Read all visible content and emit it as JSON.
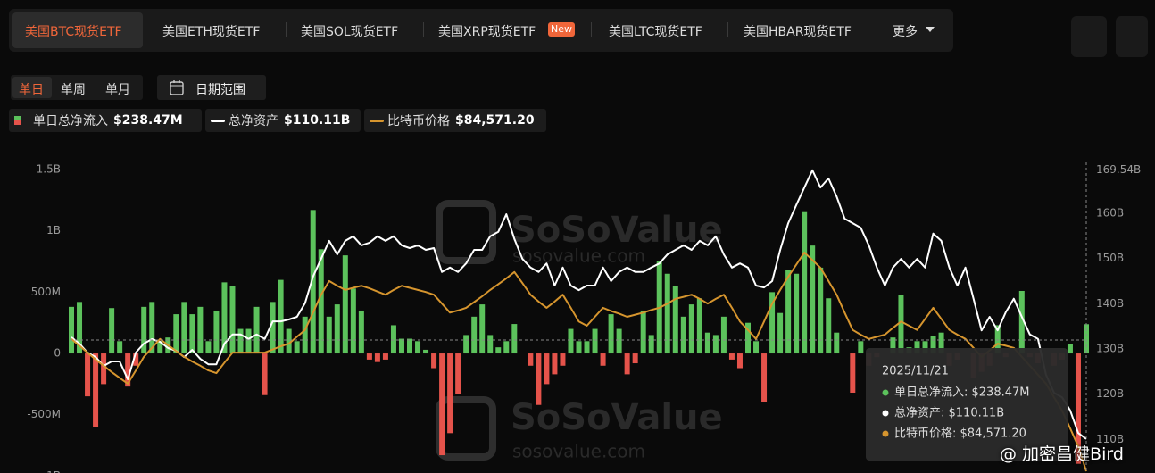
{
  "tabs": [
    "美国BTC现货ETF",
    "美国ETH现货ETF",
    "美国SOL现货ETF",
    "美国XRP现货ETF",
    "美国LTC现货ETF",
    "美国HBAR现货ETF",
    "更多"
  ],
  "badge": "New",
  "periods": [
    "单日",
    "单周",
    "单月"
  ],
  "date_range": "日期范围",
  "watermark": {
    "brand": "SoSoValue",
    "url": "sosovalue.com"
  },
  "credit": "@ 加密昌健Bird",
  "chart_data": {
    "type": "combo",
    "legend_values": [
      "$238.47M",
      "$110.11B",
      "$84,571.20"
    ],
    "ylim": [
      -1000,
      1500
    ],
    "yticks": [
      {
        "value": 1500,
        "label": "1.5B"
      },
      {
        "value": 1000,
        "label": "1B"
      },
      {
        "value": 500,
        "label": "500M"
      },
      0,
      {
        "value": -500,
        "label": "-500M"
      },
      {
        "value": -1000,
        "label": "-1B"
      }
    ],
    "y2lim": [
      100,
      169.54
    ],
    "y2ticks": [
      {
        "value": 169.54,
        "label": "169.54B"
      },
      {
        "value": 160,
        "label": "160B"
      },
      {
        "value": 150,
        "label": "150B"
      },
      {
        "value": 140,
        "label": "140B"
      },
      {
        "value": 130,
        "label": "130B"
      },
      {
        "value": 120,
        "label": "120B"
      },
      {
        "value": 110,
        "label": "110B"
      }
    ],
    "grid": false,
    "series": [
      {
        "name": "单日总净流入",
        "type": "bar",
        "color": "#5cc25c",
        "negative_color": "#e5534b",
        "values": [
          380,
          420,
          -350,
          -600,
          -250,
          370,
          100,
          -270,
          -100,
          380,
          420,
          100,
          130,
          320,
          420,
          320,
          380,
          100,
          350,
          580,
          550,
          200,
          200,
          380,
          -340,
          420,
          600,
          200,
          100,
          300,
          1170,
          850,
          300,
          400,
          800,
          530,
          350,
          -50,
          -70,
          -50,
          230,
          120,
          120,
          100,
          30,
          -120,
          -830,
          -650,
          -330,
          150,
          300,
          400,
          150,
          50,
          100,
          240,
          0,
          -100,
          -420,
          -250,
          -170,
          -100,
          200,
          100,
          100,
          200,
          -100,
          320,
          200,
          -170,
          -80,
          350,
          150,
          750,
          650,
          550,
          300,
          400,
          450,
          170,
          150,
          300,
          -50,
          -120,
          250,
          100,
          -400,
          500,
          330,
          680,
          650,
          1160,
          880,
          700,
          450,
          170,
          0,
          -320,
          100,
          -100,
          -30,
          0,
          130,
          480,
          50,
          100,
          100,
          140,
          170,
          -100,
          -50,
          0,
          -200,
          -150,
          -100,
          230,
          -30,
          0,
          510,
          -30,
          -80,
          0,
          -100,
          -50,
          80,
          -900,
          238.47
        ]
      },
      {
        "name": "总净资产",
        "type": "line",
        "axis": "y2",
        "color": "#ffffff",
        "values": [
          132.57,
          131.18,
          129.21,
          128.22,
          126.25,
          127.24,
          127.24,
          123.29,
          129.21,
          131.18,
          132.17,
          131.58,
          130.2,
          129.6,
          128.2,
          129.8,
          127.8,
          126.6,
          126.6,
          131.2,
          133.2,
          133.2,
          132.2,
          133.2,
          132.2,
          136.1,
          136.1,
          136.5,
          137.1,
          140.1,
          146,
          149.9,
          153.9,
          150.9,
          153.9,
          154.9,
          152.9,
          153.5,
          154.9,
          153.9,
          154.9,
          152.9,
          152.3,
          152.9,
          151.9,
          152.3,
          147,
          148,
          147,
          148.9,
          151.9,
          151.9,
          154.9,
          155.9,
          159.8,
          154.3,
          149.9,
          148,
          147,
          148.9,
          144,
          148,
          144,
          143,
          144,
          144,
          148,
          145,
          147,
          148,
          147,
          147,
          148,
          148.9,
          150.9,
          151.9,
          152.9,
          151.9,
          153.9,
          152.9,
          154.9,
          150.9,
          148,
          148.9,
          148,
          144,
          143.6,
          145,
          151.9,
          157.8,
          161.8,
          165.7,
          169.5,
          165.7,
          167.7,
          163.7,
          158.8,
          157.8,
          156.8,
          152.9,
          148,
          144,
          148,
          149.9,
          148,
          149.9,
          148,
          155.5,
          153.9,
          148,
          144,
          148,
          141.1,
          134.1,
          137.1,
          134.1,
          138.1,
          141.1,
          137.1,
          133.2,
          132.2,
          124.3,
          120.3,
          119.3,
          116.4,
          111.4,
          110.11
        ]
      },
      {
        "name": "比特币价格",
        "type": "line",
        "color": "#d6952e",
        "values": [
          109700,
          108400,
          107100,
          105800,
          104600,
          103400,
          102300,
          101200,
          103700,
          106300,
          108000,
          109700,
          108500,
          107400,
          106300,
          105400,
          104600,
          103700,
          103200,
          105200,
          107100,
          107100,
          107100,
          107100,
          107100,
          107700,
          108300,
          108800,
          110100,
          111400,
          114700,
          118100,
          120700,
          119800,
          119000,
          119400,
          119800,
          119300,
          118700,
          118100,
          119000,
          119800,
          119400,
          119000,
          118600,
          118100,
          116400,
          114700,
          115100,
          115600,
          116700,
          117800,
          119000,
          120100,
          121200,
          122400,
          120300,
          118100,
          116800,
          115600,
          116800,
          118100,
          115600,
          113000,
          112200,
          113900,
          115600,
          115000,
          114500,
          113900,
          114300,
          114700,
          115200,
          115600,
          116400,
          117300,
          117700,
          118100,
          117300,
          116400,
          117300,
          118100,
          115600,
          113000,
          111400,
          109700,
          113000,
          116400,
          119000,
          121500,
          123800,
          126100,
          124700,
          123200,
          120700,
          118100,
          114700,
          111400,
          110500,
          109700,
          110100,
          110500,
          111800,
          113000,
          112200,
          111400,
          113500,
          115600,
          113500,
          111400,
          110500,
          109700,
          108000,
          106300,
          107500,
          108800,
          108400,
          108000,
          106300,
          104600,
          102900,
          101200,
          98600,
          96100,
          92700,
          89300,
          84571.2
        ]
      }
    ],
    "tooltip": {
      "date": "2025/11/21",
      "rows": [
        "单日总净流入: $238.47M",
        "总净资产: $110.11B",
        "比特币价格: $84,571.20"
      ]
    }
  }
}
